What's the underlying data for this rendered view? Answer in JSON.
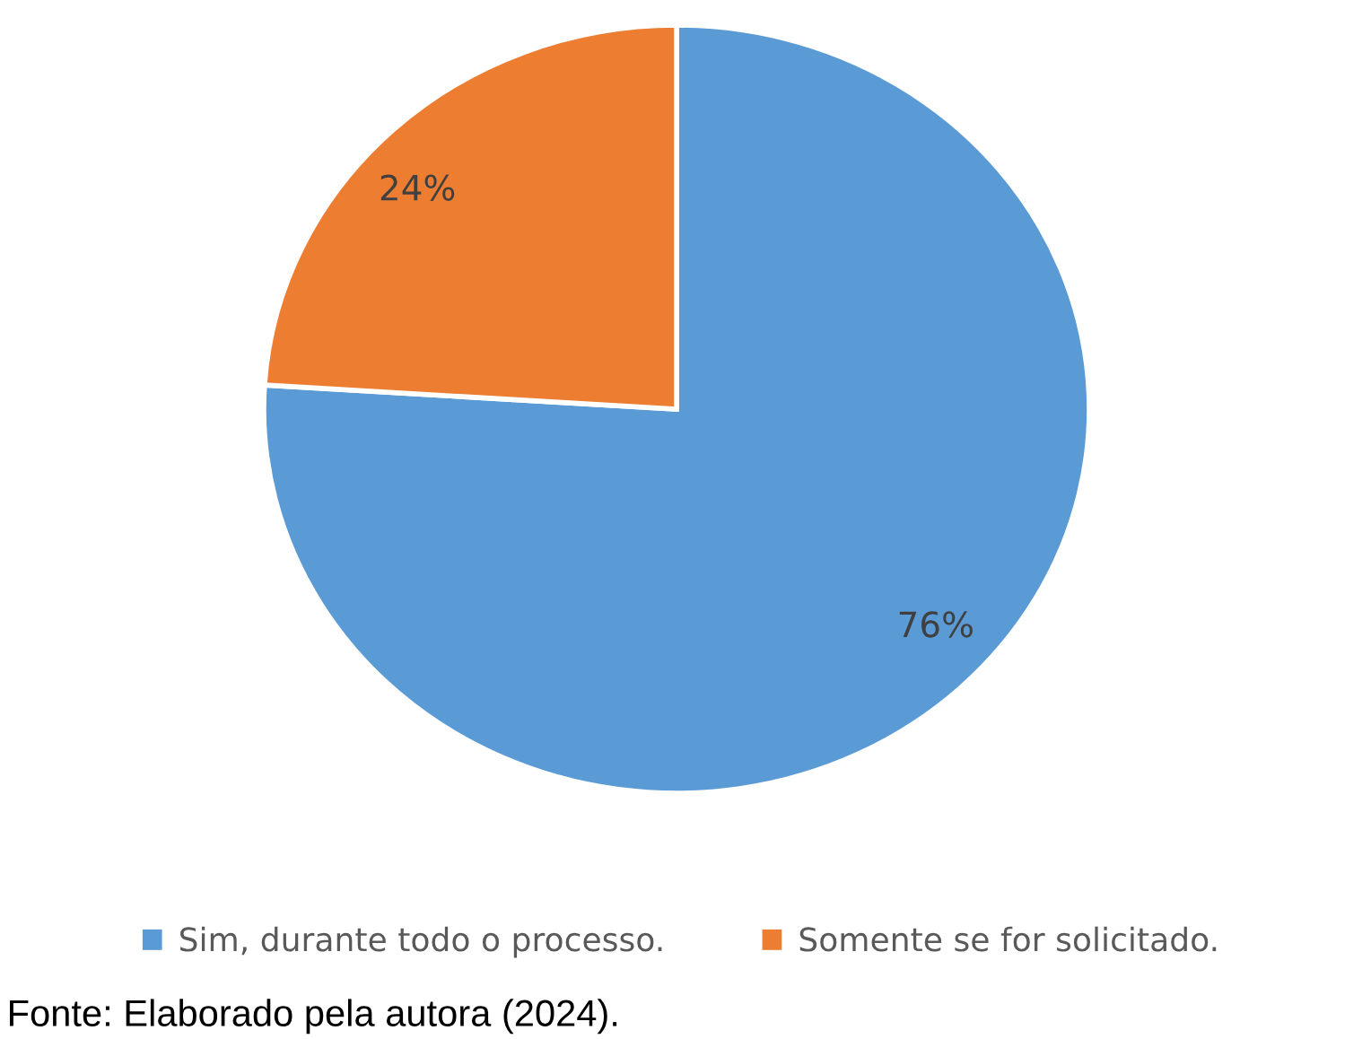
{
  "chart_data": {
    "type": "pie",
    "categories": [
      "Sim, durante todo o processo.",
      "Somente se for solicitado."
    ],
    "values": [
      76,
      24
    ],
    "colors": [
      "#5b9bd5",
      "#ed7d31"
    ],
    "value_labels": [
      "76%",
      "24%"
    ],
    "legend": "bottom",
    "annotations": [
      "Fonte: Elaborado pela autora (2024)."
    ]
  }
}
